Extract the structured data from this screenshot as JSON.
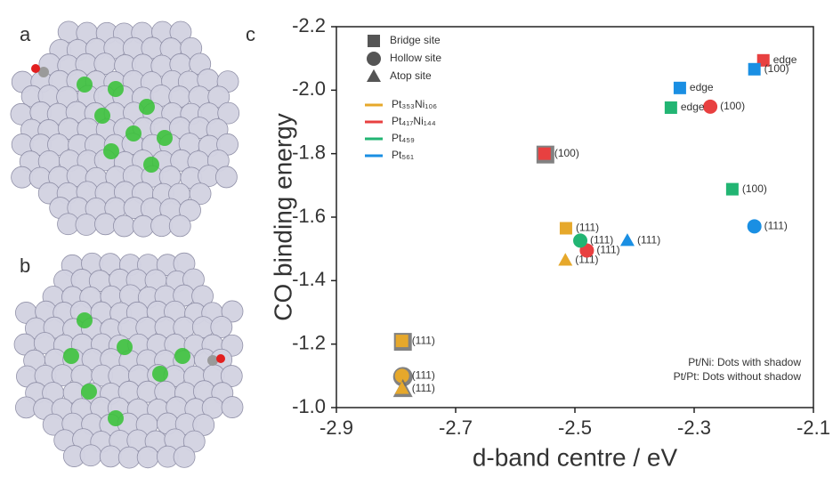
{
  "panel_labels": [
    "a",
    "b",
    "c"
  ],
  "chart_data": {
    "type": "scatter",
    "x_label": "d-band centre / eV",
    "y_label": "CO binding energy",
    "xlim": [
      -2.9,
      -2.1
    ],
    "ylim": [
      -1.0,
      -2.2
    ],
    "xticks": [
      -2.9,
      -2.7,
      -2.5,
      -2.3,
      -2.1
    ],
    "yticks": [
      {
        "value": -1.0,
        "label": "-1.0"
      },
      -1.2,
      -1.4,
      -1.6,
      -1.8,
      {
        "value": -2.0,
        "label": "-2.0"
      },
      -2.2
    ],
    "marker_legend": [
      {
        "label": "Bridge site",
        "marker": "square"
      },
      {
        "label": "Hollow site",
        "marker": "circle"
      },
      {
        "label": "Atop site",
        "marker": "triangle"
      }
    ],
    "annotations": [
      "Pt/Ni: Dots with shadow",
      "Pt/Pt: Dots without shadow"
    ],
    "series": [
      {
        "name": "Pt₃₅₃Ni₁₀₆",
        "color": "#e6a82b",
        "x": [
          -2.79,
          -2.79,
          -2.79,
          -2.515,
          -2.516
        ],
        "values": [
          -1.21,
          -1.1,
          -1.06,
          -1.565,
          -1.464
        ],
        "markers": [
          "square",
          "circle",
          "triangle",
          "square",
          "triangle"
        ],
        "labels": [
          "(111)",
          "(111)",
          "(111)",
          "(111)",
          "(111)"
        ],
        "shadow": [
          true,
          true,
          true,
          false,
          false
        ]
      },
      {
        "name": "Pt₄₁₇Ni₁₄₄",
        "color": "#e84040",
        "x": [
          -2.551,
          -2.48,
          -2.184,
          -2.273
        ],
        "values": [
          -1.8,
          -1.495,
          -2.094,
          -1.948
        ],
        "markers": [
          "square",
          "circle",
          "square",
          "circle"
        ],
        "labels": [
          "(100)",
          "(111)",
          "edge",
          "(100)"
        ],
        "shadow": [
          true,
          false,
          false,
          false
        ]
      },
      {
        "name": "Pt₄₅₉",
        "color": "#22b573",
        "x": [
          -2.491,
          -2.339,
          -2.236
        ],
        "values": [
          -1.526,
          -1.945,
          -1.688
        ],
        "markers": [
          "circle",
          "square",
          "square"
        ],
        "labels": [
          "(111)",
          "edge",
          "(100)"
        ],
        "shadow": [
          false,
          false,
          false
        ]
      },
      {
        "name": "Pt₅₆₁",
        "color": "#1a8fe3",
        "x": [
          -2.324,
          -2.199,
          -2.412,
          -2.199
        ],
        "values": [
          -2.007,
          -2.066,
          -1.526,
          -1.571
        ],
        "markers": [
          "square",
          "square",
          "triangle",
          "circle"
        ],
        "labels": [
          "edge",
          "(100)",
          "(111)",
          "(111)"
        ],
        "shadow": [
          false,
          false,
          false,
          false
        ]
      }
    ]
  }
}
